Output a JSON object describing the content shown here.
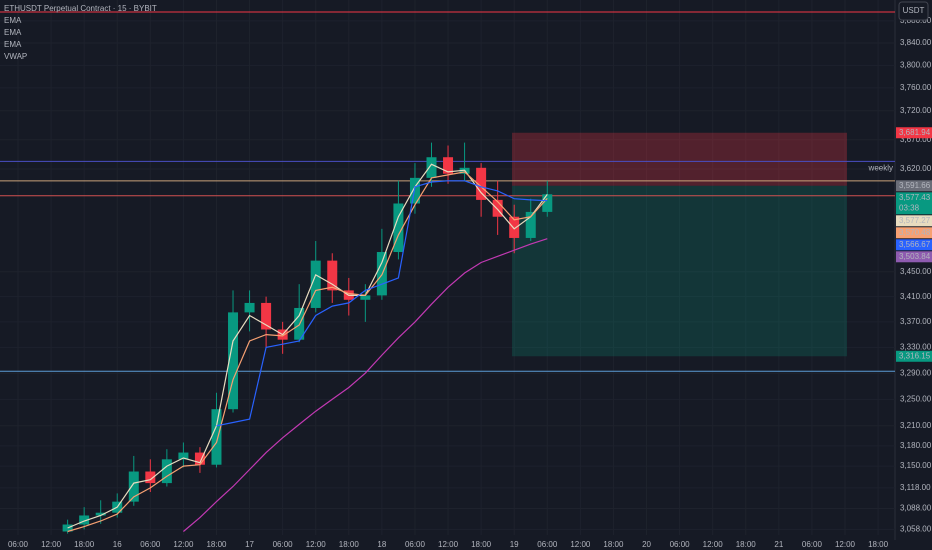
{
  "chart_data": {
    "type": "candlestick",
    "title": "ETHUSDT Perpetual Contract · 15 · BYBIT",
    "currency": "USDT",
    "log_scale": true,
    "grid": true,
    "ylim": [
      3050,
      3918
    ],
    "yticks": [
      {
        "value": 3880,
        "label": "3,880.00"
      },
      {
        "value": 3840,
        "label": "3,840.00"
      },
      {
        "value": 3800,
        "label": "3,800.00"
      },
      {
        "value": 3760,
        "label": "3,760.00"
      },
      {
        "value": 3720,
        "label": "3,720.00"
      },
      {
        "value": 3670,
        "label": "3,670.00"
      },
      {
        "value": 3620,
        "label": "3,620.00"
      },
      {
        "value": 3450,
        "label": "3,450.00"
      },
      {
        "value": 3410,
        "label": "3,410.00"
      },
      {
        "value": 3370,
        "label": "3,370.00"
      },
      {
        "value": 3330,
        "label": "3,330.00"
      },
      {
        "value": 3290,
        "label": "3,290.00"
      },
      {
        "value": 3250,
        "label": "3,250.00"
      },
      {
        "value": 3210,
        "label": "3,210.00"
      },
      {
        "value": 3180,
        "label": "3,180.00"
      },
      {
        "value": 3150,
        "label": "3,150.00"
      },
      {
        "value": 3118,
        "label": "3,118.00"
      },
      {
        "value": 3088,
        "label": "3,088.00"
      },
      {
        "value": 3058,
        "label": "3,058.00"
      }
    ],
    "categories": [
      "06:00",
      null,
      "12:00",
      null,
      "18:00",
      null,
      "16",
      null,
      "06:00",
      null,
      "12:00",
      null,
      "18:00",
      null,
      "17",
      null,
      "06:00",
      null,
      "12:00",
      null,
      "18:00",
      null,
      "18",
      null,
      "06:00",
      null,
      "12:00",
      null,
      "18:00",
      null,
      "19",
      null,
      "06:00",
      null,
      "12:00",
      null,
      "18:00",
      null,
      "20",
      null,
      "06:00",
      null,
      "12:00",
      null,
      "18:00",
      null,
      "21",
      null,
      "06:00",
      null,
      "12:00",
      null,
      "18:00"
    ],
    "open": [
      null,
      null,
      null,
      3055,
      3065,
      3078,
      3082,
      3098,
      3142,
      3125,
      3160,
      3170,
      3152,
      3235,
      3385,
      3400,
      3358,
      3342,
      3392,
      3468,
      3420,
      3405,
      3412,
      3482,
      3562,
      3605,
      3640,
      3612,
      3622,
      3568,
      3540,
      3505,
      3548,
      null,
      null,
      null,
      null,
      null,
      null,
      null,
      null,
      null,
      null,
      null,
      null,
      null,
      null,
      null,
      null,
      null,
      null,
      null,
      null
    ],
    "high": [
      null,
      null,
      null,
      3072,
      3090,
      3100,
      3110,
      3165,
      3160,
      3175,
      3185,
      3178,
      3260,
      3420,
      3420,
      3410,
      3370,
      3430,
      3500,
      3480,
      3440,
      3430,
      3520,
      3600,
      3630,
      3665,
      3660,
      3665,
      3630,
      3600,
      3560,
      3570,
      3600,
      null,
      null,
      null,
      null,
      null,
      null,
      null,
      null,
      null,
      null,
      null,
      null,
      null,
      null,
      null,
      null,
      null,
      null,
      null,
      null
    ],
    "low": [
      null,
      null,
      null,
      3052,
      3058,
      3066,
      3075,
      3092,
      3112,
      3120,
      3148,
      3140,
      3148,
      3230,
      3355,
      3330,
      3320,
      3338,
      3385,
      3400,
      3380,
      3370,
      3405,
      3470,
      3545,
      3590,
      3595,
      3600,
      3540,
      3510,
      3480,
      3500,
      3540,
      null,
      null,
      null,
      null,
      null,
      null,
      null,
      null,
      null,
      null,
      null,
      null,
      null,
      null,
      null,
      null,
      null,
      null,
      null,
      null
    ],
    "close": [
      null,
      null,
      null,
      3065,
      3078,
      3082,
      3098,
      3142,
      3125,
      3160,
      3170,
      3152,
      3235,
      3385,
      3400,
      3358,
      3342,
      3392,
      3468,
      3420,
      3405,
      3412,
      3482,
      3562,
      3605,
      3640,
      3612,
      3622,
      3568,
      3540,
      3505,
      3548,
      3577.43,
      null,
      null,
      null,
      null,
      null,
      null,
      null,
      null,
      null,
      null,
      null,
      null,
      null,
      null,
      null,
      null,
      null,
      null,
      null,
      null
    ],
    "up_color": "#089981",
    "down_color": "#f23645",
    "series": [
      {
        "name": "EMA",
        "color": "#e8dcc0",
        "values": [
          null,
          null,
          null,
          3060,
          3070,
          3078,
          3090,
          3125,
          3130,
          3150,
          3162,
          3155,
          3210,
          3340,
          3380,
          3365,
          3350,
          3380,
          3445,
          3430,
          3412,
          3412,
          3465,
          3540,
          3590,
          3628,
          3615,
          3618,
          3580,
          3552,
          3520,
          3540,
          3577.27,
          null,
          null,
          null,
          null,
          null,
          null,
          null,
          null,
          null,
          null,
          null,
          null,
          null,
          null,
          null,
          null,
          null,
          null,
          null,
          null
        ]
      },
      {
        "name": "EMA",
        "color": "#f7a072",
        "values": [
          null,
          null,
          null,
          3055,
          3062,
          3070,
          3080,
          3105,
          3118,
          3135,
          3150,
          3152,
          3185,
          3280,
          3340,
          3350,
          3348,
          3365,
          3420,
          3425,
          3415,
          3412,
          3445,
          3510,
          3560,
          3605,
          3610,
          3615,
          3590,
          3565,
          3535,
          3540,
          3570.48,
          null,
          null,
          null,
          null,
          null,
          null,
          null,
          null,
          null,
          null,
          null,
          null,
          null,
          null,
          null,
          null,
          null,
          null,
          null,
          null
        ]
      },
      {
        "name": "EMA",
        "color": "#c239b3",
        "values": [
          null,
          null,
          null,
          null,
          null,
          null,
          null,
          null,
          null,
          null,
          3055,
          3075,
          3098,
          3120,
          3145,
          3170,
          3192,
          3212,
          3232,
          3250,
          3268,
          3290,
          3318,
          3345,
          3370,
          3398,
          3425,
          3448,
          3465,
          3475,
          3485,
          3495,
          3503.84,
          null,
          null,
          null,
          null,
          null,
          null,
          null,
          null,
          null,
          null,
          null,
          null,
          null,
          null,
          null,
          null,
          null,
          null,
          null,
          null
        ]
      },
      {
        "name": "VWAP",
        "color": "#2962ff",
        "values": [
          null,
          null,
          null,
          null,
          null,
          null,
          null,
          null,
          null,
          null,
          null,
          null,
          3210,
          3215,
          3220,
          3330,
          3335,
          3340,
          3380,
          3395,
          3400,
          3420,
          3430,
          3440,
          3590,
          3598,
          3600,
          3600,
          3590,
          3583,
          3570,
          3568,
          3566.67,
          null,
          null,
          null,
          null,
          null,
          null,
          null,
          null,
          null,
          null,
          null,
          null,
          null,
          null,
          null,
          null,
          null,
          null,
          null,
          null
        ]
      }
    ],
    "hlines": [
      {
        "value": 3896,
        "color": "#f23645"
      },
      {
        "value": 3633,
        "color": "#4a4fc4",
        "label": "weekly"
      },
      {
        "value": 3600,
        "color": "#c9a27a"
      },
      {
        "value": 3575,
        "color": "#d05050"
      },
      {
        "value": 3293,
        "color": "#5b9bd5"
      }
    ],
    "position": {
      "stop": 3681.94,
      "entry": 3591.66,
      "target": 3316.15
    },
    "price_labels": [
      {
        "value": 3681.94,
        "label": "3,681.94",
        "color": "#f23645"
      },
      {
        "value": 3591.66,
        "label": "3,591.66",
        "color": "#6a6d78"
      },
      {
        "value": 3577.43,
        "label": "3,577.43",
        "sublabel": "03:38",
        "color": "#089981"
      },
      {
        "value": 3577.27,
        "label": "3,577.27",
        "color": "#e8dcc0"
      },
      {
        "value": 3570.48,
        "label": "3,570.48",
        "color": "#f7a072"
      },
      {
        "value": 3566.67,
        "label": "3,566.67",
        "color": "#2962ff"
      },
      {
        "value": 3503.84,
        "label": "3,503.84",
        "color": "#8e5bb0"
      },
      {
        "value": 3316.15,
        "label": "3,316.15",
        "color": "#089981"
      }
    ]
  }
}
